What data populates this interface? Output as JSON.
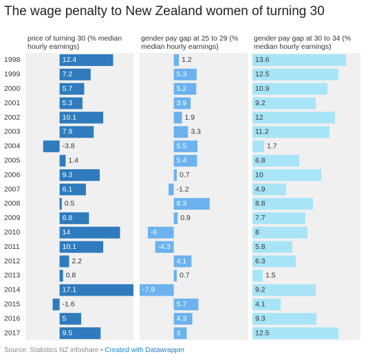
{
  "title": "The wage penalty to New Zealand women of turning 30",
  "source": "Source: Statistics NZ infoshare",
  "credit": "Created with Datawrapper",
  "chart_data": [
    {
      "type": "bar",
      "x_label": "price of turning 30 (% median hourly earnings)",
      "categories": [
        "1998",
        "1999",
        "2000",
        "2001",
        "2002",
        "2003",
        "2004",
        "2005",
        "2006",
        "2007",
        "2008",
        "2009",
        "2010",
        "2011",
        "2012",
        "2013",
        "2014",
        "2015",
        "2016",
        "2017"
      ],
      "values": [
        12.4,
        7.2,
        5.7,
        5.3,
        10.1,
        7.9,
        -3.8,
        1.4,
        9.3,
        6.1,
        0.5,
        6.8,
        14,
        10.1,
        2.2,
        0.8,
        17.1,
        -1.6,
        5,
        9.5
      ],
      "color": "#2f7bbd",
      "xlim": [
        -7.9,
        17.1
      ]
    },
    {
      "type": "bar",
      "x_label": "gender pay gap at 25 to 29 (% median hourly earnings)",
      "values": [
        1.2,
        5.3,
        5.2,
        3.9,
        1.9,
        3.3,
        5.5,
        5.4,
        0.7,
        -1.2,
        8.3,
        0.9,
        -6,
        -4.3,
        4.1,
        0.7,
        -7.9,
        5.7,
        4.3,
        3
      ],
      "color": "#6cb2ee",
      "xlim": [
        -7.9,
        17.1
      ]
    },
    {
      "type": "bar",
      "x_label": "gender pay gap at 30 to 34 (% median hourly earnings)",
      "values": [
        13.6,
        12.5,
        10.9,
        9.2,
        12,
        11.2,
        1.7,
        6.8,
        10,
        4.9,
        8.8,
        7.7,
        8,
        5.8,
        6.3,
        1.5,
        9.2,
        4.1,
        9.3,
        12.5
      ],
      "color": "#a8e4f8",
      "xlim": [
        0,
        15.7
      ]
    }
  ]
}
